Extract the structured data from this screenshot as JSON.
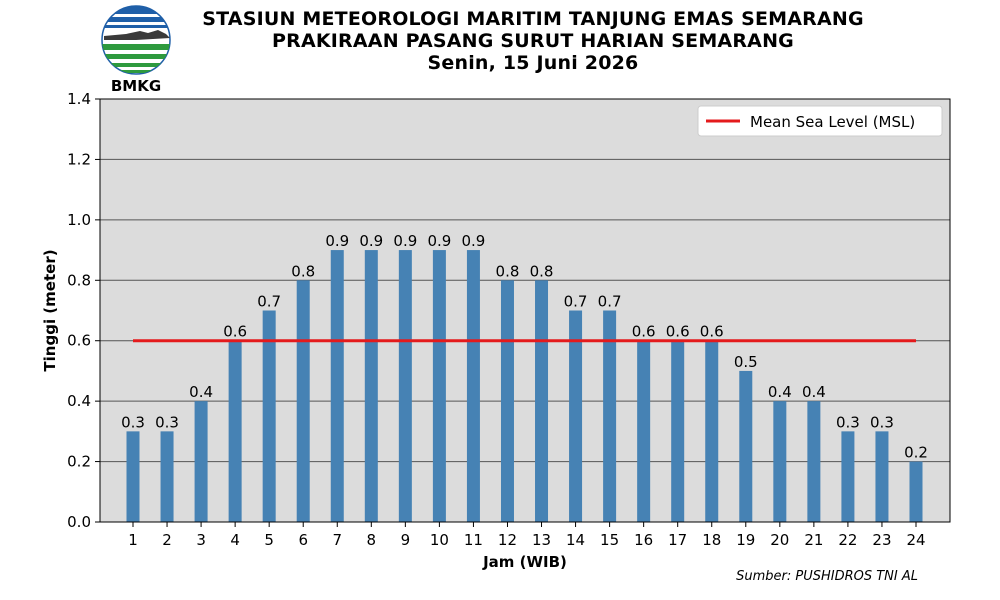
{
  "header": {
    "line1": "STASIUN METEOROLOGI MARITIM TANJUNG EMAS SEMARANG",
    "line2": "PRAKIRAAN PASANG SURUT HARIAN SEMARANG",
    "line3": "Senin, 15 Juni 2026"
  },
  "logo": {
    "text": "BMKG",
    "icon": "bmkg-logo"
  },
  "source": "Sumber: PUSHIDROS TNI AL",
  "colors": {
    "bar": "#4682b4",
    "msl": "#e41a1c",
    "plot_bg": "#dcdcdc",
    "grid": "#555555"
  },
  "chart_data": {
    "type": "bar",
    "categories": [
      "1",
      "2",
      "3",
      "4",
      "5",
      "6",
      "7",
      "8",
      "9",
      "10",
      "11",
      "12",
      "13",
      "14",
      "15",
      "16",
      "17",
      "18",
      "19",
      "20",
      "21",
      "22",
      "23",
      "24"
    ],
    "values": [
      0.3,
      0.3,
      0.4,
      0.6,
      0.7,
      0.8,
      0.9,
      0.9,
      0.9,
      0.9,
      0.9,
      0.8,
      0.8,
      0.7,
      0.7,
      0.6,
      0.6,
      0.6,
      0.5,
      0.4,
      0.4,
      0.3,
      0.3,
      0.2
    ],
    "value_labels": [
      "0.3",
      "0.3",
      "0.4",
      "0.6",
      "0.7",
      "0.8",
      "0.9",
      "0.9",
      "0.9",
      "0.9",
      "0.9",
      "0.8",
      "0.8",
      "0.7",
      "0.7",
      "0.6",
      "0.6",
      "0.6",
      "0.5",
      "0.4",
      "0.4",
      "0.3",
      "0.3",
      "0.2"
    ],
    "msl": 0.6,
    "legend": [
      {
        "name": "Mean Sea Level (MSL)",
        "kind": "line"
      }
    ],
    "legend_position": "top-right",
    "xlabel": "Jam (WIB)",
    "ylabel": "Tinggi (meter)",
    "ylim": [
      0,
      1.4
    ],
    "yticks": [
      "0.0",
      "0.2",
      "0.4",
      "0.6",
      "0.8",
      "1.0",
      "1.2",
      "1.4"
    ],
    "grid": "horizontal"
  }
}
